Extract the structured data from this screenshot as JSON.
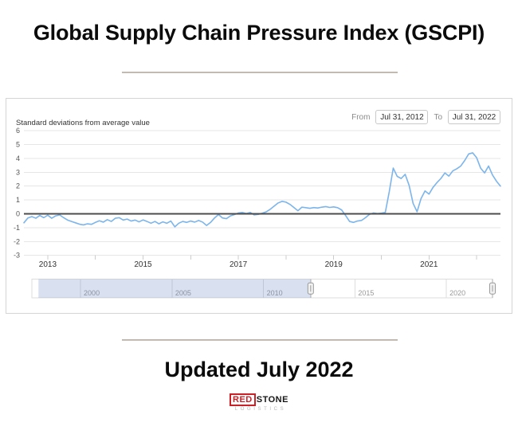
{
  "header": {
    "title": "Global Supply Chain Pressure Index (GSCPI)"
  },
  "panel": {
    "y_axis_title": "Standard deviations from average value",
    "from_label": "From",
    "to_label": "To",
    "from_value": "Jul 31, 2012",
    "to_value": "Jul 31, 2022"
  },
  "chart_data": {
    "type": "line",
    "title": "",
    "xlabel": "",
    "ylabel": "Standard deviations from average value",
    "ylim": [
      -3,
      6
    ],
    "y_ticks": [
      6,
      5,
      4,
      3,
      2,
      1,
      0,
      -1,
      -2,
      -3
    ],
    "x_start": "2012-07",
    "x_end": "2022-07",
    "frequency": "monthly",
    "x_tick_labels": [
      "2013",
      "2015",
      "2017",
      "2019",
      "2021"
    ],
    "grid": true,
    "legend": "none",
    "line_color": "#7cb5ec",
    "zero_line_color": "#4d4d4d",
    "grid_color": "#e6e6e6",
    "series": [
      {
        "name": "GSCPI",
        "values": [
          -0.65,
          -0.3,
          -0.2,
          -0.32,
          -0.12,
          -0.28,
          -0.1,
          -0.32,
          -0.15,
          -0.08,
          -0.28,
          -0.45,
          -0.55,
          -0.65,
          -0.75,
          -0.8,
          -0.72,
          -0.76,
          -0.62,
          -0.5,
          -0.6,
          -0.42,
          -0.55,
          -0.32,
          -0.28,
          -0.45,
          -0.38,
          -0.52,
          -0.45,
          -0.58,
          -0.44,
          -0.55,
          -0.68,
          -0.55,
          -0.72,
          -0.58,
          -0.68,
          -0.52,
          -0.94,
          -0.68,
          -0.55,
          -0.62,
          -0.52,
          -0.6,
          -0.48,
          -0.6,
          -0.84,
          -0.62,
          -0.3,
          -0.05,
          -0.3,
          -0.35,
          -0.15,
          -0.06,
          0.06,
          0.1,
          0.02,
          0.1,
          -0.08,
          -0.04,
          0.04,
          0.14,
          0.32,
          0.55,
          0.78,
          0.9,
          0.84,
          0.68,
          0.45,
          0.22,
          0.48,
          0.44,
          0.4,
          0.45,
          0.42,
          0.48,
          0.52,
          0.46,
          0.5,
          0.44,
          0.28,
          -0.12,
          -0.55,
          -0.62,
          -0.52,
          -0.48,
          -0.28,
          -0.04,
          0.06,
          0.02,
          0.05,
          0.1,
          1.6,
          3.3,
          2.7,
          2.55,
          2.85,
          2.05,
          0.75,
          0.15,
          1.1,
          1.65,
          1.42,
          1.9,
          2.25,
          2.55,
          2.95,
          2.72,
          3.1,
          3.25,
          3.45,
          3.85,
          4.32,
          4.4,
          4.05,
          3.3,
          2.95,
          3.45,
          2.8,
          2.35,
          2.0
        ]
      }
    ],
    "navigator": {
      "tick_labels": [
        "2000",
        "2005",
        "2010",
        "2015",
        "2020"
      ],
      "range_start": 1997.34,
      "range_end": 2022.52,
      "data_start": 1997.7,
      "selected_start": 2012.58,
      "selected_end": 2022.52,
      "mask_color": "rgba(102,133,194,0.25)",
      "handle_fill": "#f2f2f2",
      "handle_border": "#999999",
      "outline_color": "#dddddd",
      "label_color": "#999999"
    }
  },
  "footer": {
    "updated_text": "Updated July 2022",
    "logo": {
      "red": "RED",
      "stone": "STONE",
      "sub": "LOGISTICS"
    }
  }
}
